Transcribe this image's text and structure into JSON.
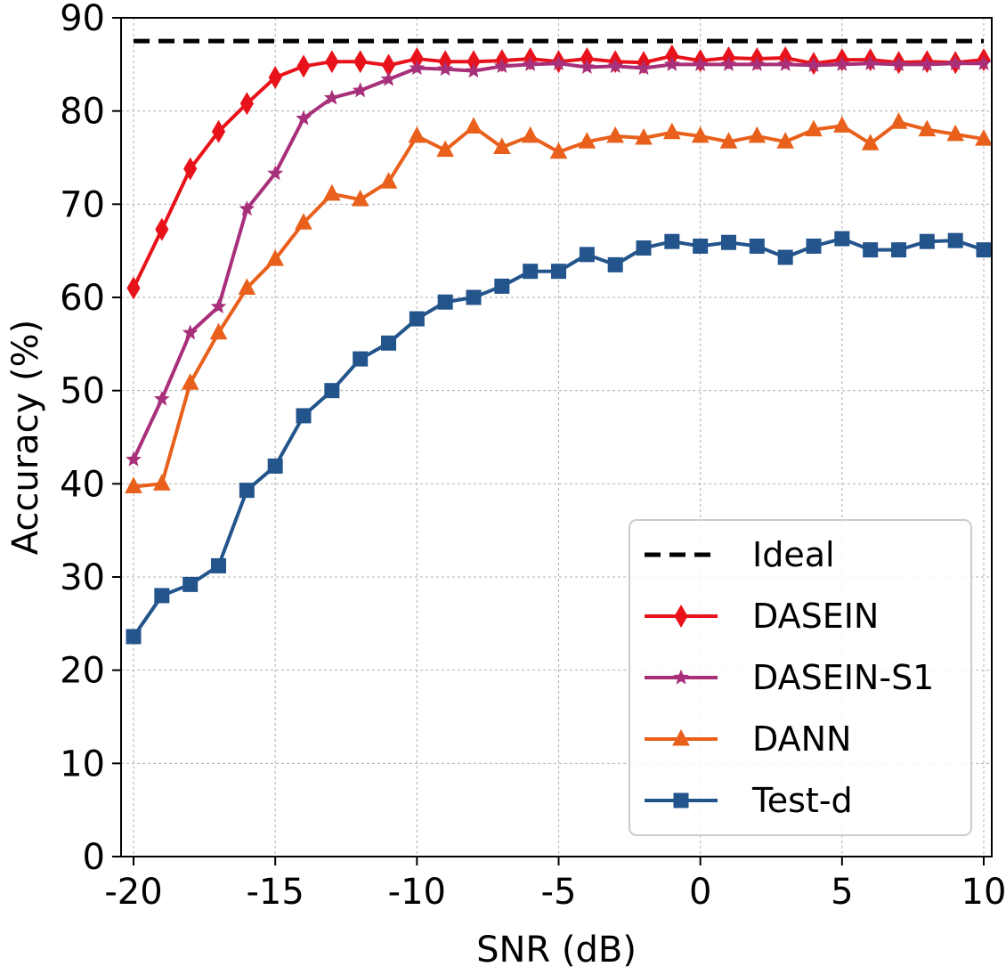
{
  "chart_data": {
    "type": "line",
    "title": "",
    "xlabel": "SNR (dB)",
    "ylabel": "Accuracy (%)",
    "xlim": [
      -20,
      10
    ],
    "ylim": [
      0,
      90
    ],
    "x_ticks": [
      -20,
      -15,
      -10,
      -5,
      0,
      5,
      10
    ],
    "y_ticks": [
      0,
      10,
      20,
      30,
      40,
      50,
      60,
      70,
      80,
      90
    ],
    "grid": true,
    "legend_position": "bottom-right",
    "x": [
      -20,
      -19,
      -18,
      -17,
      -16,
      -15,
      -14,
      -13,
      -12,
      -11,
      -10,
      -9,
      -8,
      -7,
      -6,
      -5,
      -4,
      -3,
      -2,
      -1,
      0,
      1,
      2,
      3,
      4,
      5,
      6,
      7,
      8,
      9,
      10
    ],
    "ideal": {
      "name": "Ideal",
      "value": 87.5,
      "color": "#000000"
    },
    "series": [
      {
        "name": "DASEIN",
        "color": "#e8131a",
        "marker": "diamond",
        "values": [
          61.0,
          67.3,
          73.8,
          77.8,
          80.8,
          83.6,
          84.8,
          85.3,
          85.3,
          84.9,
          85.6,
          85.3,
          85.3,
          85.4,
          85.6,
          85.3,
          85.6,
          85.3,
          85.2,
          85.9,
          85.4,
          85.7,
          85.6,
          85.7,
          85.1,
          85.5,
          85.5,
          85.2,
          85.3,
          85.2,
          85.5
        ]
      },
      {
        "name": "DASEIN-S1",
        "color": "#a8307a",
        "marker": "star",
        "values": [
          42.6,
          49.1,
          56.2,
          59.0,
          69.5,
          73.3,
          79.2,
          81.4,
          82.2,
          83.4,
          84.6,
          84.5,
          84.3,
          84.8,
          85.0,
          85.1,
          84.7,
          84.8,
          84.6,
          85.0,
          85.0,
          85.0,
          85.0,
          85.0,
          84.9,
          85.0,
          85.1,
          85.0,
          85.0,
          85.1,
          85.1
        ]
      },
      {
        "name": "DANN",
        "color": "#e8601c",
        "marker": "triangle",
        "values": [
          39.7,
          40.0,
          50.8,
          56.2,
          61.0,
          64.1,
          68.0,
          71.1,
          70.5,
          72.4,
          77.3,
          75.8,
          78.3,
          76.1,
          77.3,
          75.6,
          76.7,
          77.3,
          77.1,
          77.7,
          77.3,
          76.7,
          77.3,
          76.7,
          78.0,
          78.4,
          76.5,
          78.8,
          78.0,
          77.5,
          77.0
        ]
      },
      {
        "name": "Test-d",
        "color": "#23548c",
        "marker": "square",
        "values": [
          23.6,
          28.0,
          29.2,
          31.2,
          39.3,
          41.9,
          47.3,
          50.0,
          53.4,
          55.1,
          57.7,
          59.5,
          60.0,
          61.2,
          62.8,
          62.8,
          64.6,
          63.5,
          65.3,
          66.0,
          65.5,
          65.9,
          65.5,
          64.3,
          65.5,
          66.3,
          65.1,
          65.1,
          66.0,
          66.1,
          65.1
        ]
      }
    ]
  }
}
